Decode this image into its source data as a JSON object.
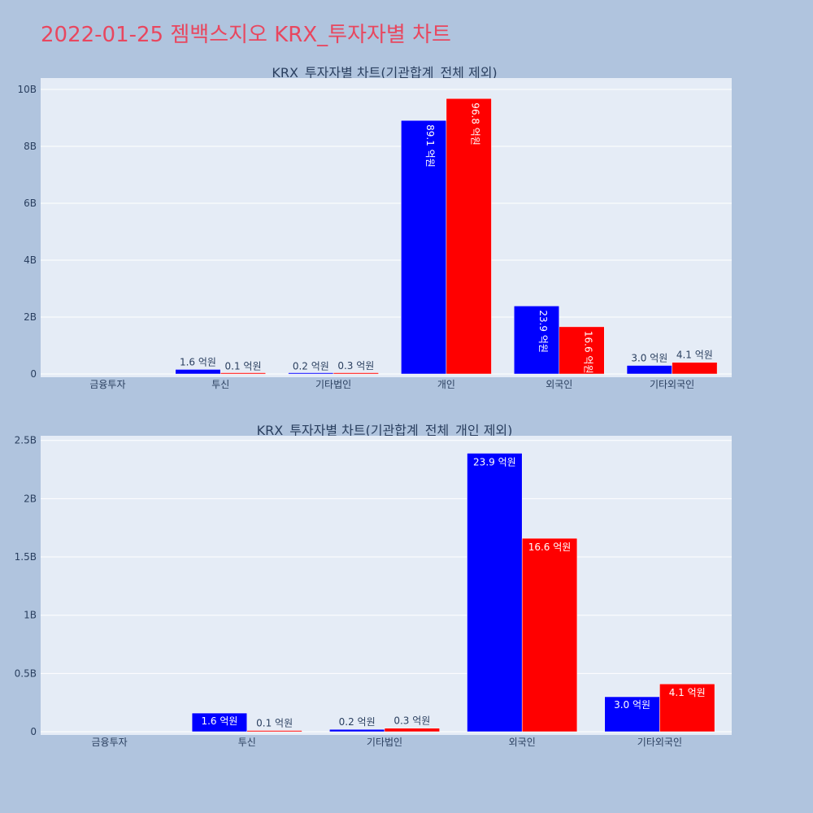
{
  "page_title": "2022-01-25 젬백스지오 KRX_투자자별 차트",
  "colors": {
    "background": "#b0c4de",
    "plot_bg": "#e5ecf6",
    "title": "#e8475f",
    "series1": "#0000ff",
    "series2": "#ff0000"
  },
  "chart_data": [
    {
      "type": "bar",
      "title": "KRX_투자자별 차트(기관합계_전체 제외)",
      "categories": [
        "금융투자",
        "투신",
        "기타법인",
        "개인",
        "외국인",
        "기타외국인"
      ],
      "series": [
        {
          "values": [
            0,
            160000000,
            20000000,
            8910000000,
            2390000000,
            300000000
          ],
          "labels": [
            "",
            "1.6 억원",
            "0.2 억원",
            "89.1 억원",
            "23.9 억원",
            "3.0 억원"
          ],
          "color": "#0000ff"
        },
        {
          "values": [
            0,
            10000000,
            30000000,
            9680000000,
            1660000000,
            410000000
          ],
          "labels": [
            "",
            "0.1 억원",
            "0.3 억원",
            "96.8 억원",
            "16.6 억원",
            "4.1 억원"
          ],
          "color": "#ff0000"
        }
      ],
      "ylim": [
        0,
        10400000000
      ],
      "yticks": [
        0,
        2000000000,
        4000000000,
        6000000000,
        8000000000,
        10000000000
      ],
      "yticklabels": [
        "0",
        "2B",
        "4B",
        "6B",
        "8B",
        "10B"
      ],
      "grid": true,
      "legend": "none"
    },
    {
      "type": "bar",
      "title": "KRX_투자자별 차트(기관합계_전체_개인 제외)",
      "categories": [
        "금융투자",
        "투신",
        "기타법인",
        "외국인",
        "기타외국인"
      ],
      "series": [
        {
          "values": [
            0,
            160000000,
            20000000,
            2390000000,
            300000000
          ],
          "labels": [
            "",
            "1.6 억원",
            "0.2 억원",
            "23.9 억원",
            "3.0 억원"
          ],
          "color": "#0000ff"
        },
        {
          "values": [
            0,
            10000000,
            30000000,
            1660000000,
            410000000
          ],
          "labels": [
            "",
            "0.1 억원",
            "0.3 억원",
            "16.6 억원",
            "4.1 억원"
          ],
          "color": "#ff0000"
        }
      ],
      "ylim": [
        0,
        2540000000
      ],
      "yticks": [
        0,
        500000000,
        1000000000,
        1500000000,
        2000000000,
        2500000000
      ],
      "yticklabels": [
        "0",
        "0.5B",
        "1B",
        "1.5B",
        "2B",
        "2.5B"
      ],
      "grid": true,
      "legend": "none"
    }
  ]
}
